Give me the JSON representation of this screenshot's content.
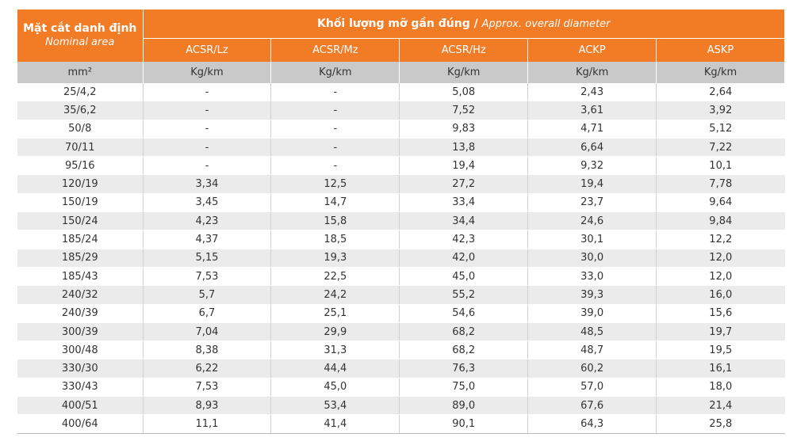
{
  "header": {
    "area_title": "Mặt cắt danh định",
    "area_subtitle": "Nominal area",
    "group_title": "Khối lượng mỡ gần đúng /",
    "group_subtitle": "Approx. overall diameter"
  },
  "table": {
    "columns": [
      "ACSR/Lz",
      "ACSR/Mz",
      "ACSR/Hz",
      "ACKP",
      "ASKP"
    ],
    "units": [
      "mm²",
      "Kg/km",
      "Kg/km",
      "Kg/km",
      "Kg/km",
      "Kg/km"
    ],
    "rows": [
      [
        "25/4,2",
        "-",
        "-",
        "5,08",
        "2,43",
        "2,64"
      ],
      [
        "35/6,2",
        "-",
        "-",
        "7,52",
        "3,61",
        "3,92"
      ],
      [
        "50/8",
        "-",
        "-",
        "9,83",
        "4,71",
        "5,12"
      ],
      [
        "70/11",
        "-",
        "-",
        "13,8",
        "6,64",
        "7,22"
      ],
      [
        "95/16",
        "-",
        "-",
        "19,4",
        "9,32",
        "10,1"
      ],
      [
        "120/19",
        "3,34",
        "12,5",
        "27,2",
        "19,4",
        "7,78"
      ],
      [
        "150/19",
        "3,45",
        "14,7",
        "33,4",
        "23,7",
        "9,64"
      ],
      [
        "150/24",
        "4,23",
        "15,8",
        "34,4",
        "24,6",
        "9,84"
      ],
      [
        "185/24",
        "4,37",
        "18,5",
        "42,3",
        "30,1",
        "12,2"
      ],
      [
        "185/29",
        "5,15",
        "19,3",
        "42,0",
        "30,0",
        "12,0"
      ],
      [
        "185/43",
        "7,53",
        "22,5",
        "45,0",
        "33,0",
        "12,0"
      ],
      [
        "240/32",
        "5,7",
        "24,2",
        "55,2",
        "39,3",
        "16,0"
      ],
      [
        "240/39",
        "6,7",
        "25,1",
        "54,6",
        "39,0",
        "15,6"
      ],
      [
        "300/39",
        "7,04",
        "29,9",
        "68,2",
        "48,5",
        "19,7"
      ],
      [
        "300/48",
        "8,38",
        "31,3",
        "68,2",
        "48,7",
        "19,5"
      ],
      [
        "330/30",
        "6,22",
        "44,4",
        "76,3",
        "60,2",
        "16,1"
      ],
      [
        "330/43",
        "7,53",
        "45,0",
        "75,0",
        "57,0",
        "18,0"
      ],
      [
        "400/51",
        "8,93",
        "53,4",
        "89,0",
        "67,6",
        "21,4"
      ],
      [
        "400/64",
        "11,1",
        "41,4",
        "90,1",
        "64,3",
        "25,8"
      ]
    ]
  }
}
